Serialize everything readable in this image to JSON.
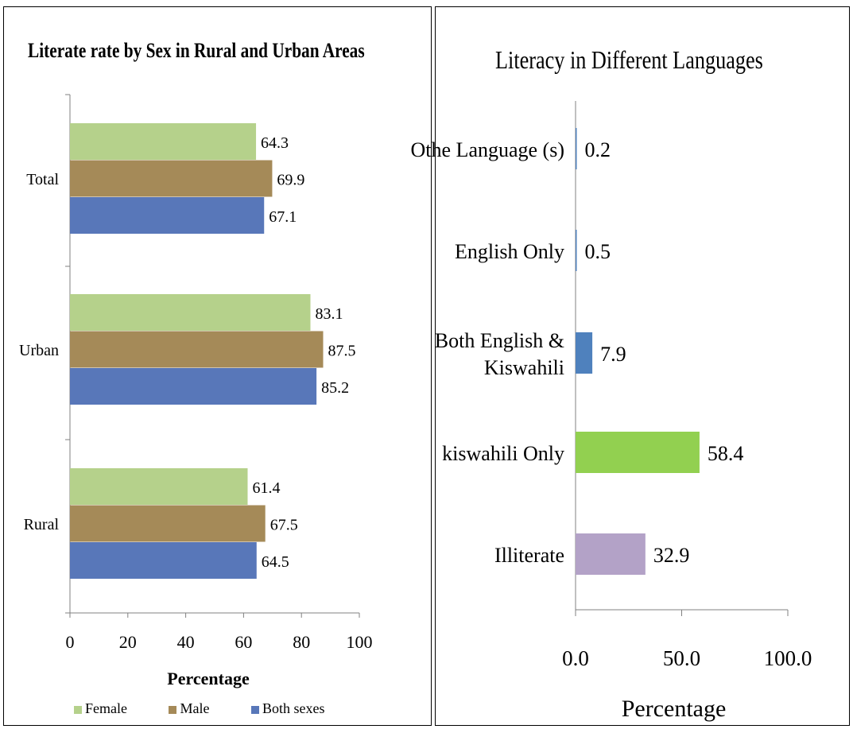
{
  "chart_data": [
    {
      "type": "bar",
      "orientation": "horizontal",
      "title": "Literate rate by Sex in Rural and Urban Areas",
      "xlabel": "Percentage",
      "ylabel": "",
      "categories": [
        "Total",
        "Urban",
        "Rural"
      ],
      "series": [
        {
          "name": "Female",
          "values": [
            64.3,
            83.1,
            61.4
          ],
          "color": "#b5d18b"
        },
        {
          "name": "Male",
          "values": [
            69.9,
            87.5,
            67.5
          ],
          "color": "#a58a58"
        },
        {
          "name": "Both sexes",
          "values": [
            67.1,
            85.2,
            64.5
          ],
          "color": "#5877b9"
        }
      ],
      "data_labels": {
        "Female": [
          "64.3",
          "83.1",
          "61.4"
        ],
        "Male": [
          "69.9",
          "87.5",
          "67.5"
        ],
        "Both sexes": [
          "67.1",
          "85.2",
          "64.5"
        ]
      },
      "xlim": [
        0,
        100
      ],
      "xticks": [
        "0",
        "20",
        "40",
        "60",
        "80",
        "100"
      ],
      "grid": false,
      "legend": "bottom"
    },
    {
      "type": "bar",
      "orientation": "horizontal",
      "title": "Literacy in Different Languages",
      "xlabel": "Percentage",
      "ylabel": "",
      "categories": [
        "Othe Language (s)",
        "English Only",
        "Both English & Kiswahili",
        "kiswahili Only",
        "Illiterate"
      ],
      "category_lines": [
        [
          "Othe Language (s)"
        ],
        [
          "English Only"
        ],
        [
          "Both English &",
          "Kiswahili"
        ],
        [
          "kiswahili Only"
        ],
        [
          "Illiterate"
        ]
      ],
      "values": [
        0.2,
        0.5,
        7.9,
        58.4,
        32.9
      ],
      "value_labels": [
        "0.2",
        "0.5",
        "7.9",
        "58.4",
        "32.9"
      ],
      "colors": [
        "#4f81bd",
        "#4f81bd",
        "#4f81bd",
        "#92d050",
        "#b3a2c7"
      ],
      "xlim": [
        0,
        100
      ],
      "xticks": [
        "0.0",
        "50.0",
        "100.0"
      ],
      "grid": false,
      "legend": "none"
    }
  ]
}
